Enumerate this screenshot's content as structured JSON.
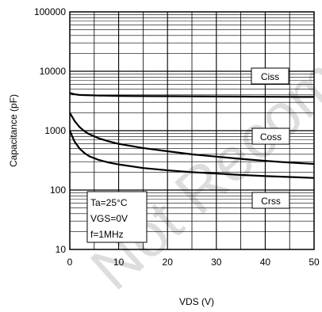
{
  "chart_data": {
    "type": "line",
    "xlabel": "VDS (V)",
    "ylabel": "Capacitance (pF)",
    "xlim": [
      0,
      50
    ],
    "ylim": [
      10,
      100000
    ],
    "y_scale": "log",
    "grid": true,
    "x_ticks": [
      "0",
      "10",
      "20",
      "30",
      "40",
      "50"
    ],
    "y_ticks": [
      "100000",
      "10000",
      "1000",
      "100",
      "10"
    ],
    "series": [
      {
        "name": "Ciss",
        "x": [
          0,
          1,
          2,
          4,
          6,
          10,
          15,
          20,
          25,
          30,
          35,
          40,
          45,
          50
        ],
        "values": [
          4300,
          4100,
          4000,
          3950,
          3900,
          3850,
          3820,
          3800,
          3780,
          3760,
          3740,
          3720,
          3710,
          3700
        ]
      },
      {
        "name": "Coss",
        "x": [
          0,
          0.5,
          1,
          2,
          3,
          4,
          6,
          8,
          10,
          15,
          20,
          25,
          30,
          35,
          40,
          45,
          50
        ],
        "values": [
          2000,
          1700,
          1450,
          1150,
          980,
          870,
          740,
          660,
          600,
          510,
          450,
          400,
          365,
          335,
          310,
          290,
          275
        ]
      },
      {
        "name": "Crss",
        "x": [
          0,
          0.5,
          1,
          2,
          3,
          4,
          6,
          8,
          10,
          15,
          20,
          25,
          30,
          35,
          40,
          45,
          50
        ],
        "values": [
          1000,
          800,
          650,
          500,
          420,
          370,
          320,
          290,
          270,
          235,
          215,
          200,
          190,
          180,
          172,
          166,
          160
        ]
      }
    ],
    "annotations": [
      "Ta=25°C",
      "VGS=0V",
      "f=1MHz"
    ]
  },
  "watermark": "Not Recommended"
}
